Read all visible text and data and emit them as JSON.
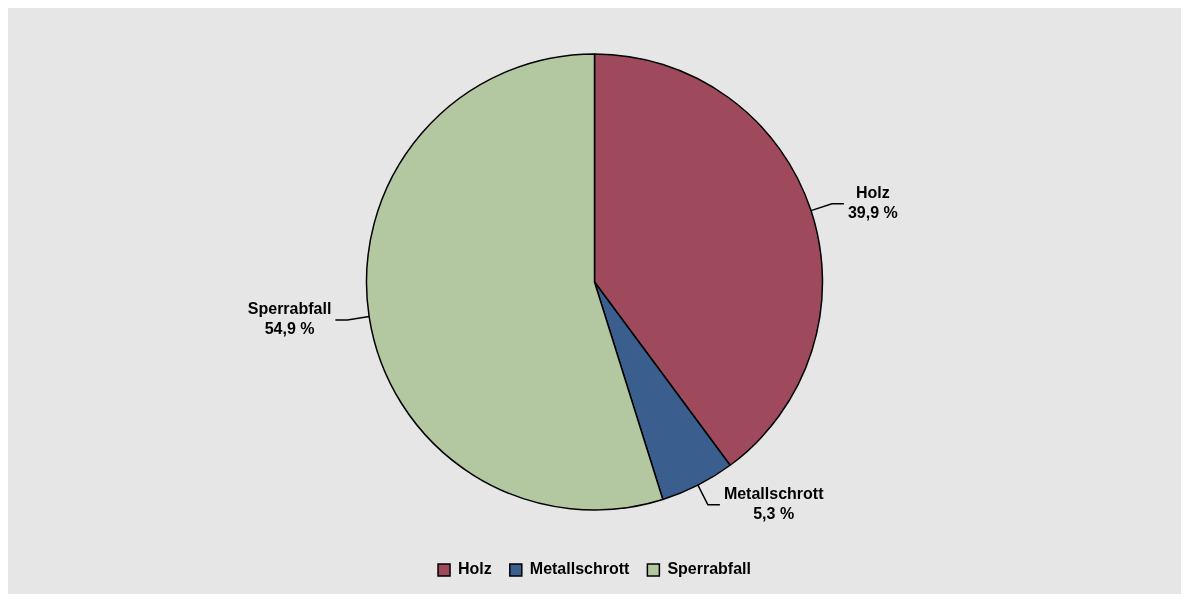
{
  "chart_data": {
    "type": "pie",
    "categories": [
      "Holz",
      "Metallschrott",
      "Sperrabfall"
    ],
    "values": [
      39.9,
      5.3,
      54.9
    ],
    "colors": [
      "#9e4a5c",
      "#3a5e8e",
      "#b3c8a0"
    ],
    "value_labels": [
      "39,9 %",
      "5,3 %",
      "54,9 %"
    ],
    "legend": "bottom"
  }
}
